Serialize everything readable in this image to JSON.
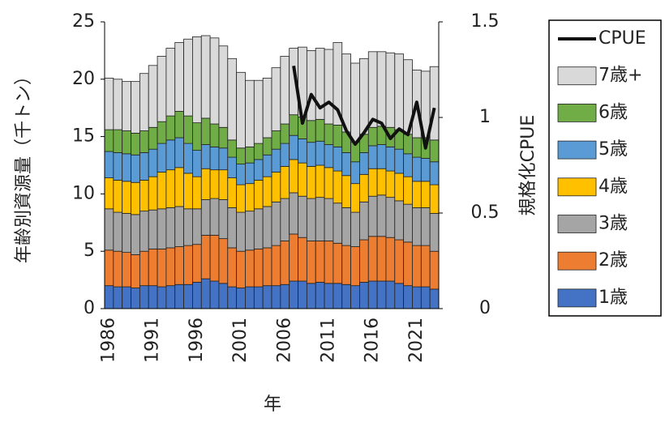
{
  "chart_data": {
    "type": "bar",
    "stacked": true,
    "y_label": "年齢別資源量（千トン）",
    "y2_label": "規格化CPUE",
    "x_label": "年",
    "categories": [
      "1986",
      null,
      null,
      null,
      null,
      "1991",
      null,
      null,
      null,
      null,
      "1996",
      null,
      null,
      null,
      null,
      "2001",
      null,
      null,
      null,
      null,
      "2006",
      null,
      null,
      null,
      null,
      "2011",
      null,
      null,
      null,
      null,
      "2016",
      null,
      null,
      null,
      null,
      "2021",
      null,
      null
    ],
    "ylim": [
      0,
      25
    ],
    "yticks": [
      0,
      5,
      10,
      15,
      20,
      25
    ],
    "y2lim": [
      0,
      1.5
    ],
    "y2ticks": [
      0,
      0.5,
      1,
      1.5
    ],
    "series": [
      {
        "name": "1歳",
        "color": "#4472c4",
        "values": [
          2.0,
          1.9,
          1.9,
          1.8,
          2.0,
          2.0,
          1.9,
          2.0,
          2.1,
          2.1,
          2.3,
          2.6,
          2.4,
          2.2,
          1.9,
          1.8,
          1.9,
          1.9,
          2.0,
          2.0,
          2.1,
          2.4,
          2.4,
          2.2,
          2.3,
          2.2,
          2.2,
          2.1,
          2.0,
          2.3,
          2.4,
          2.4,
          2.4,
          2.2,
          2.0,
          1.9,
          1.9,
          1.7
        ]
      },
      {
        "name": "2歳",
        "color": "#ed7d31",
        "values": [
          3.1,
          3.1,
          3.0,
          2.9,
          3.0,
          3.2,
          3.3,
          3.3,
          3.3,
          3.4,
          3.3,
          3.8,
          4.0,
          3.9,
          3.4,
          3.2,
          3.2,
          3.3,
          3.3,
          3.5,
          3.8,
          4.1,
          3.8,
          3.7,
          3.6,
          3.7,
          3.5,
          3.4,
          3.4,
          3.7,
          3.9,
          3.9,
          3.8,
          3.8,
          3.8,
          3.6,
          3.6,
          3.3
        ]
      },
      {
        "name": "3歳",
        "color": "#a5a5a5",
        "values": [
          3.6,
          3.4,
          3.4,
          3.5,
          3.5,
          3.4,
          3.5,
          3.5,
          3.5,
          3.2,
          3.1,
          3.1,
          3.2,
          3.4,
          3.5,
          3.4,
          3.4,
          3.5,
          3.6,
          3.8,
          3.7,
          3.6,
          3.6,
          3.7,
          3.8,
          3.7,
          3.5,
          3.3,
          3.0,
          3.3,
          3.5,
          3.6,
          3.5,
          3.4,
          3.3,
          3.3,
          3.3,
          3.3
        ]
      },
      {
        "name": "4歳",
        "color": "#ffc000",
        "values": [
          2.7,
          2.8,
          2.8,
          2.8,
          2.7,
          2.9,
          3.2,
          3.3,
          3.4,
          3.1,
          2.8,
          2.7,
          2.5,
          2.6,
          2.6,
          2.4,
          2.4,
          2.5,
          2.6,
          2.6,
          2.8,
          2.9,
          2.9,
          2.8,
          2.8,
          2.7,
          2.8,
          2.8,
          2.5,
          2.4,
          2.4,
          2.3,
          2.3,
          2.4,
          2.4,
          2.3,
          2.3,
          2.5
        ]
      },
      {
        "name": "5歳",
        "color": "#5b9bd5",
        "values": [
          2.3,
          2.4,
          2.4,
          2.4,
          2.4,
          2.4,
          2.5,
          2.6,
          2.6,
          2.6,
          2.3,
          2.1,
          2.0,
          1.9,
          1.8,
          1.8,
          1.8,
          1.8,
          1.9,
          2.0,
          2.0,
          2.1,
          2.1,
          2.1,
          2.1,
          2.0,
          2.1,
          2.0,
          1.9,
          1.9,
          2.0,
          2.1,
          2.1,
          2.1,
          2.0,
          2.1,
          2.0,
          2.0
        ]
      },
      {
        "name": "6歳",
        "color": "#70ad47",
        "values": [
          1.9,
          2.0,
          2.0,
          1.9,
          1.9,
          1.9,
          1.9,
          2.1,
          2.3,
          2.4,
          2.4,
          2.3,
          2.0,
          1.8,
          1.5,
          1.4,
          1.4,
          1.4,
          1.5,
          1.6,
          1.7,
          1.8,
          1.9,
          1.9,
          1.9,
          1.8,
          1.9,
          1.8,
          1.7,
          1.6,
          1.6,
          1.6,
          1.7,
          1.7,
          1.7,
          1.7,
          1.8,
          1.9
        ]
      },
      {
        "name": "7歳+",
        "color": "#d9d9d9",
        "values": [
          4.5,
          4.4,
          4.3,
          4.5,
          5.0,
          5.4,
          5.7,
          5.9,
          6.0,
          6.7,
          7.5,
          7.2,
          7.5,
          7.1,
          7.1,
          6.6,
          5.8,
          5.5,
          5.2,
          5.5,
          5.9,
          5.8,
          6.1,
          6.1,
          6.2,
          6.5,
          7.2,
          6.8,
          6.9,
          6.6,
          6.6,
          6.5,
          6.5,
          6.6,
          6.5,
          5.9,
          5.8,
          6.4
        ]
      },
      {
        "name": "CPUE",
        "type": "line",
        "axis": "y2",
        "color": "#111111",
        "values": [
          null,
          null,
          null,
          null,
          null,
          null,
          null,
          null,
          null,
          null,
          null,
          null,
          null,
          null,
          null,
          null,
          null,
          null,
          null,
          null,
          null,
          1.27,
          0.97,
          1.12,
          1.05,
          1.08,
          1.04,
          0.93,
          0.86,
          0.92,
          0.99,
          0.97,
          0.89,
          0.94,
          0.91,
          1.08,
          0.84,
          1.05
        ]
      }
    ]
  }
}
